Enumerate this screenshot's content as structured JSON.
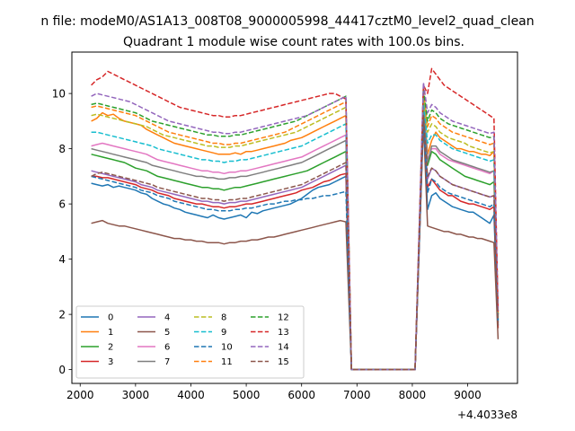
{
  "chart_data": {
    "type": "line",
    "suptitle": "n file: modeM0/AS1A13_008T08_9000005998_44417cztM0_level2_quad_clean",
    "title": "Quadrant 1 module wise count rates with 100.0s bins.",
    "xlabel": "",
    "ylabel": "",
    "x_offset_label": "+4.4033e8",
    "xlim": [
      1850,
      9900
    ],
    "ylim": [
      -0.5,
      11.5
    ],
    "x_ticks": [
      2000,
      3000,
      4000,
      5000,
      6000,
      7000,
      8000,
      9000
    ],
    "x_tick_labels": [
      "2000",
      "3000",
      "4000",
      "5000",
      "6000",
      "7000",
      "8000",
      "9000"
    ],
    "y_ticks": [
      0,
      2,
      4,
      6,
      8,
      10
    ],
    "y_tick_labels": [
      "0",
      "2",
      "4",
      "6",
      "8",
      "10"
    ],
    "grid": false,
    "legend_position": "lower-left",
    "legend_columns": 4,
    "series": [
      {
        "name": "0",
        "color": "#1f77b4",
        "dash": "solid",
        "seg1": [
          6.75,
          6.7,
          6.65,
          6.7,
          6.6,
          6.65,
          6.6,
          6.55,
          6.5,
          6.4,
          6.35,
          6.2,
          6.1,
          6.0,
          5.95,
          5.85,
          5.8,
          5.7,
          5.65,
          5.6,
          5.55,
          5.5,
          5.6,
          5.5,
          5.45,
          5.5,
          5.55,
          5.6,
          5.5,
          5.7,
          5.65,
          5.75,
          5.8,
          5.85,
          5.9,
          5.95,
          6.0,
          6.1,
          6.2,
          6.35,
          6.5,
          6.6,
          6.65,
          6.7,
          6.8,
          6.9,
          7.0
        ],
        "seg2": [
          9.3,
          5.8,
          6.3,
          6.4,
          6.2,
          6.1,
          6.0,
          5.9,
          5.85,
          5.8,
          5.75,
          5.7,
          5.7,
          5.6,
          5.5,
          5.4,
          5.3,
          5.6
        ],
        "seg2_end": 1.6
      },
      {
        "name": "1",
        "color": "#ff7f0e",
        "dash": "solid",
        "seg1": [
          9.0,
          9.1,
          9.3,
          9.2,
          9.25,
          9.1,
          9.0,
          8.95,
          8.9,
          8.85,
          8.7,
          8.6,
          8.5,
          8.4,
          8.3,
          8.2,
          8.15,
          8.1,
          8.05,
          8.0,
          7.95,
          7.9,
          7.85,
          7.8,
          7.8,
          7.8,
          7.85,
          7.8,
          7.9,
          7.9,
          7.95,
          8.0,
          8.05,
          8.1,
          8.15,
          8.2,
          8.3,
          8.35,
          8.4,
          8.5,
          8.6,
          8.7,
          8.8,
          8.9,
          9.0,
          9.1,
          9.2
        ],
        "seg2": [
          9.7,
          7.8,
          8.3,
          8.6,
          8.4,
          8.3,
          8.2,
          8.1,
          8.0,
          8.0,
          7.95,
          7.9,
          7.9,
          7.85,
          7.8,
          7.8,
          7.75,
          7.9
        ],
        "seg2_end": 1.9
      },
      {
        "name": "2",
        "color": "#2ca02c",
        "dash": "solid",
        "seg1": [
          7.8,
          7.75,
          7.7,
          7.65,
          7.6,
          7.55,
          7.5,
          7.4,
          7.3,
          7.25,
          7.2,
          7.1,
          7.0,
          6.95,
          6.9,
          6.85,
          6.8,
          6.75,
          6.7,
          6.65,
          6.6,
          6.6,
          6.55,
          6.55,
          6.5,
          6.55,
          6.6,
          6.6,
          6.65,
          6.7,
          6.75,
          6.8,
          6.85,
          6.9,
          6.95,
          7.0,
          7.05,
          7.1,
          7.15,
          7.2,
          7.3,
          7.4,
          7.5,
          7.6,
          7.7,
          7.8,
          7.9
        ],
        "seg2": [
          9.5,
          7.4,
          7.9,
          7.8,
          7.6,
          7.5,
          7.4,
          7.3,
          7.2,
          7.1,
          7.0,
          6.95,
          6.9,
          6.85,
          6.8,
          6.75,
          6.7,
          6.8
        ],
        "seg2_end": 1.8
      },
      {
        "name": "3",
        "color": "#d62728",
        "dash": "solid",
        "seg1": [
          7.0,
          7.0,
          6.95,
          6.95,
          6.9,
          6.85,
          6.8,
          6.75,
          6.7,
          6.6,
          6.55,
          6.5,
          6.4,
          6.35,
          6.3,
          6.2,
          6.15,
          6.1,
          6.05,
          6.0,
          6.0,
          5.95,
          5.9,
          5.9,
          5.85,
          5.9,
          5.9,
          5.95,
          6.0,
          6.0,
          6.05,
          6.1,
          6.15,
          6.2,
          6.25,
          6.3,
          6.35,
          6.4,
          6.5,
          6.55,
          6.6,
          6.7,
          6.8,
          6.85,
          6.95,
          7.05,
          7.1
        ],
        "seg2": [
          9.2,
          6.6,
          6.9,
          6.7,
          6.5,
          6.4,
          6.3,
          6.3,
          6.2,
          6.1,
          6.05,
          6.0,
          6.0,
          5.95,
          5.9,
          5.85,
          5.8,
          5.9
        ],
        "seg2_end": 1.5
      },
      {
        "name": "4",
        "color": "#9467bd",
        "dash": "solid",
        "seg1": [
          7.2,
          7.15,
          7.1,
          7.05,
          7.0,
          6.95,
          6.9,
          6.85,
          6.8,
          6.7,
          6.65,
          6.6,
          6.5,
          6.45,
          6.4,
          6.35,
          6.3,
          6.25,
          6.2,
          6.15,
          6.1,
          6.1,
          6.05,
          6.05,
          6.0,
          6.05,
          6.05,
          6.1,
          6.1,
          6.15,
          6.2,
          6.25,
          6.3,
          6.35,
          6.4,
          6.45,
          6.5,
          6.55,
          6.6,
          6.7,
          6.8,
          6.9,
          7.0,
          7.1,
          7.2,
          7.3,
          7.4
        ],
        "seg2": [
          9.0,
          6.9,
          7.3,
          7.2,
          7.0,
          6.9,
          6.8,
          6.7,
          6.65,
          6.6,
          6.55,
          6.5,
          6.45,
          6.4,
          6.35,
          6.3,
          6.25,
          6.3
        ],
        "seg2_end": 1.7
      },
      {
        "name": "5",
        "color": "#8c564b",
        "dash": "solid",
        "seg1": [
          5.3,
          5.35,
          5.4,
          5.3,
          5.25,
          5.2,
          5.2,
          5.15,
          5.1,
          5.05,
          5.0,
          4.95,
          4.9,
          4.85,
          4.8,
          4.75,
          4.75,
          4.7,
          4.7,
          4.65,
          4.65,
          4.6,
          4.6,
          4.6,
          4.55,
          4.6,
          4.6,
          4.65,
          4.65,
          4.7,
          4.7,
          4.75,
          4.8,
          4.8,
          4.85,
          4.9,
          4.95,
          5.0,
          5.05,
          5.1,
          5.15,
          5.2,
          5.25,
          5.3,
          5.35,
          5.4,
          5.35
        ],
        "seg2": [
          9.0,
          5.2,
          5.15,
          5.1,
          5.05,
          5.0,
          5.0,
          4.95,
          4.9,
          4.9,
          4.85,
          4.8,
          4.8,
          4.75,
          4.75,
          4.7,
          4.65,
          4.6
        ],
        "seg2_end": 1.1
      },
      {
        "name": "6",
        "color": "#e377c2",
        "dash": "solid",
        "seg1": [
          8.1,
          8.15,
          8.2,
          8.15,
          8.1,
          8.05,
          8.0,
          7.95,
          7.9,
          7.85,
          7.8,
          7.7,
          7.6,
          7.55,
          7.5,
          7.45,
          7.4,
          7.35,
          7.3,
          7.25,
          7.2,
          7.2,
          7.15,
          7.15,
          7.1,
          7.15,
          7.15,
          7.2,
          7.2,
          7.25,
          7.3,
          7.35,
          7.4,
          7.45,
          7.5,
          7.55,
          7.6,
          7.65,
          7.7,
          7.8,
          7.9,
          8.0,
          8.1,
          8.2,
          8.3,
          8.4,
          8.5
        ],
        "seg2": [
          9.4,
          7.6,
          8.0,
          8.0,
          7.8,
          7.7,
          7.6,
          7.55,
          7.5,
          7.45,
          7.4,
          7.35,
          7.3,
          7.25,
          7.2,
          7.15,
          7.1,
          7.2
        ],
        "seg2_end": 1.6
      },
      {
        "name": "7",
        "color": "#7f7f7f",
        "dash": "solid",
        "seg1": [
          8.0,
          7.95,
          7.9,
          7.85,
          7.8,
          7.75,
          7.7,
          7.65,
          7.6,
          7.55,
          7.5,
          7.4,
          7.35,
          7.3,
          7.25,
          7.2,
          7.15,
          7.1,
          7.05,
          7.0,
          7.0,
          6.95,
          6.95,
          6.9,
          6.9,
          6.95,
          6.95,
          7.0,
          7.0,
          7.05,
          7.1,
          7.15,
          7.2,
          7.25,
          7.3,
          7.35,
          7.4,
          7.45,
          7.5,
          7.6,
          7.7,
          7.8,
          7.9,
          8.0,
          8.1,
          8.2,
          8.3
        ],
        "seg2": [
          9.6,
          7.5,
          8.1,
          8.1,
          7.9,
          7.8,
          7.7,
          7.6,
          7.55,
          7.5,
          7.45,
          7.4,
          7.35,
          7.3,
          7.25,
          7.2,
          7.15,
          7.2
        ],
        "seg2_end": 1.7
      },
      {
        "name": "8",
        "color": "#bcbd22",
        "dash": "dashed",
        "seg1": [
          9.2,
          9.25,
          9.2,
          9.15,
          9.1,
          9.05,
          9.0,
          8.95,
          8.9,
          8.85,
          8.8,
          8.7,
          8.6,
          8.5,
          8.45,
          8.4,
          8.35,
          8.3,
          8.25,
          8.2,
          8.15,
          8.1,
          8.1,
          8.05,
          8.05,
          8.05,
          8.1,
          8.1,
          8.15,
          8.2,
          8.25,
          8.3,
          8.35,
          8.4,
          8.45,
          8.5,
          8.55,
          8.6,
          8.7,
          8.8,
          8.9,
          9.0,
          9.1,
          9.2,
          9.3,
          9.4,
          9.5
        ],
        "seg2": [
          9.9,
          8.6,
          8.9,
          8.8,
          8.6,
          8.5,
          8.4,
          8.35,
          8.3,
          8.25,
          8.2,
          8.1,
          8.05,
          8.0,
          7.95,
          7.9,
          7.85,
          7.9
        ],
        "seg2_end": 1.9
      },
      {
        "name": "9",
        "color": "#17becf",
        "dash": "dashed",
        "seg1": [
          8.6,
          8.6,
          8.55,
          8.5,
          8.45,
          8.4,
          8.35,
          8.3,
          8.25,
          8.2,
          8.15,
          8.1,
          8.0,
          7.95,
          7.9,
          7.85,
          7.8,
          7.75,
          7.7,
          7.65,
          7.6,
          7.6,
          7.55,
          7.55,
          7.5,
          7.55,
          7.55,
          7.6,
          7.6,
          7.65,
          7.7,
          7.75,
          7.8,
          7.85,
          7.9,
          7.95,
          8.0,
          8.05,
          8.1,
          8.2,
          8.3,
          8.4,
          8.5,
          8.6,
          8.7,
          8.8,
          8.9
        ],
        "seg2": [
          9.8,
          8.2,
          8.5,
          8.5,
          8.3,
          8.2,
          8.1,
          8.0,
          7.95,
          7.9,
          7.85,
          7.8,
          7.75,
          7.7,
          7.65,
          7.6,
          7.55,
          7.6
        ],
        "seg2_end": 1.8
      },
      {
        "name": "10",
        "color": "#1f77b4",
        "dash": "dashed",
        "seg1": [
          7.0,
          6.95,
          6.9,
          6.85,
          6.8,
          6.75,
          6.7,
          6.65,
          6.6,
          6.5,
          6.45,
          6.4,
          6.3,
          6.25,
          6.2,
          6.1,
          6.05,
          6.0,
          5.95,
          5.9,
          5.85,
          5.8,
          5.8,
          5.75,
          5.75,
          5.75,
          5.8,
          5.8,
          5.85,
          5.85,
          5.9,
          5.95,
          6.0,
          6.0,
          6.05,
          6.1,
          6.1,
          6.15,
          6.15,
          6.2,
          6.2,
          6.25,
          6.3,
          6.3,
          6.35,
          6.4,
          6.45
        ],
        "seg2": [
          9.1,
          6.4,
          6.9,
          6.8,
          6.6,
          6.5,
          6.4,
          6.35,
          6.3,
          6.25,
          6.2,
          6.15,
          6.1,
          6.05,
          6.0,
          5.95,
          5.9,
          6.0
        ],
        "seg2_end": 1.6
      },
      {
        "name": "11",
        "color": "#ff7f0e",
        "dash": "dashed",
        "seg1": [
          9.5,
          9.55,
          9.5,
          9.45,
          9.4,
          9.35,
          9.3,
          9.25,
          9.2,
          9.1,
          9.0,
          8.9,
          8.8,
          8.7,
          8.6,
          8.55,
          8.5,
          8.45,
          8.4,
          8.35,
          8.3,
          8.25,
          8.2,
          8.2,
          8.15,
          8.15,
          8.2,
          8.2,
          8.25,
          8.3,
          8.35,
          8.4,
          8.45,
          8.5,
          8.55,
          8.6,
          8.7,
          8.8,
          8.9,
          9.0,
          9.1,
          9.2,
          9.3,
          9.4,
          9.5,
          9.6,
          9.7
        ],
        "seg2": [
          10.1,
          8.8,
          9.2,
          9.1,
          8.9,
          8.8,
          8.7,
          8.6,
          8.55,
          8.5,
          8.45,
          8.4,
          8.35,
          8.3,
          8.25,
          8.2,
          8.15,
          8.2
        ],
        "seg2_end": 2.0
      },
      {
        "name": "12",
        "color": "#2ca02c",
        "dash": "dashed",
        "seg1": [
          9.6,
          9.65,
          9.6,
          9.55,
          9.5,
          9.45,
          9.4,
          9.35,
          9.3,
          9.2,
          9.1,
          9.0,
          8.95,
          8.9,
          8.85,
          8.8,
          8.75,
          8.7,
          8.65,
          8.6,
          8.55,
          8.5,
          8.5,
          8.45,
          8.45,
          8.45,
          8.5,
          8.5,
          8.55,
          8.6,
          8.65,
          8.7,
          8.75,
          8.8,
          8.85,
          8.9,
          8.95,
          9.0,
          9.1,
          9.2,
          9.3,
          9.4,
          9.5,
          9.6,
          9.7,
          9.8,
          9.9
        ],
        "seg2": [
          10.2,
          9.0,
          9.4,
          9.3,
          9.1,
          9.0,
          8.9,
          8.85,
          8.8,
          8.75,
          8.7,
          8.65,
          8.6,
          8.55,
          8.5,
          8.45,
          8.4,
          8.45
        ],
        "seg2_end": 2.0
      },
      {
        "name": "13",
        "color": "#d62728",
        "dash": "dashed",
        "seg1": [
          10.3,
          10.5,
          10.6,
          10.8,
          10.7,
          10.6,
          10.5,
          10.4,
          10.3,
          10.2,
          10.1,
          10.0,
          9.9,
          9.8,
          9.7,
          9.6,
          9.5,
          9.45,
          9.4,
          9.35,
          9.3,
          9.25,
          9.2,
          9.2,
          9.15,
          9.15,
          9.2,
          9.2,
          9.25,
          9.3,
          9.35,
          9.4,
          9.45,
          9.5,
          9.55,
          9.6,
          9.65,
          9.7,
          9.75,
          9.8,
          9.85,
          9.9,
          9.95,
          10.0,
          10.0,
          9.9,
          9.8
        ],
        "seg2": [
          10.3,
          10.0,
          10.9,
          10.7,
          10.5,
          10.3,
          10.2,
          10.1,
          10.0,
          9.9,
          9.8,
          9.7,
          9.6,
          9.5,
          9.4,
          9.3,
          9.2,
          9.1
        ],
        "seg2_end": 2.1
      },
      {
        "name": "14",
        "color": "#9467bd",
        "dash": "dashed",
        "seg1": [
          9.9,
          10.0,
          9.95,
          9.9,
          9.85,
          9.8,
          9.75,
          9.7,
          9.6,
          9.5,
          9.4,
          9.3,
          9.2,
          9.1,
          9.0,
          8.95,
          8.9,
          8.85,
          8.8,
          8.75,
          8.7,
          8.65,
          8.6,
          8.6,
          8.55,
          8.55,
          8.6,
          8.6,
          8.65,
          8.7,
          8.75,
          8.8,
          8.85,
          8.9,
          8.95,
          9.0,
          9.05,
          9.1,
          9.15,
          9.2,
          9.3,
          9.4,
          9.5,
          9.6,
          9.7,
          9.8,
          9.9
        ],
        "seg2": [
          10.4,
          9.3,
          9.6,
          9.5,
          9.3,
          9.2,
          9.1,
          9.0,
          8.95,
          8.9,
          8.85,
          8.8,
          8.75,
          8.7,
          8.65,
          8.6,
          8.55,
          8.6
        ],
        "seg2_end": 2.0
      },
      {
        "name": "15",
        "color": "#8c564b",
        "dash": "dashed",
        "seg1": [
          7.0,
          7.1,
          7.15,
          7.1,
          7.05,
          7.0,
          6.95,
          6.9,
          6.85,
          6.8,
          6.75,
          6.7,
          6.6,
          6.55,
          6.5,
          6.45,
          6.4,
          6.35,
          6.3,
          6.25,
          6.2,
          6.2,
          6.15,
          6.15,
          6.1,
          6.15,
          6.15,
          6.2,
          6.2,
          6.25,
          6.3,
          6.35,
          6.4,
          6.45,
          6.5,
          6.55,
          6.6,
          6.65,
          6.7,
          6.8,
          6.9,
          7.0,
          7.1,
          7.2,
          7.3,
          7.4,
          7.5
        ],
        "seg2": [
          9.2,
          7.0,
          7.3,
          7.2,
          7.0,
          6.9,
          6.8,
          6.7,
          6.65,
          6.6,
          6.55,
          6.5,
          6.45,
          6.4,
          6.35,
          6.3,
          6.25,
          6.3
        ],
        "seg2_end": 1.5
      }
    ],
    "x_seg1_start": 2200,
    "x_step": 100,
    "x_gap_zero_start": 6900,
    "x_gap_zero_end": 8050,
    "x_seg2_start": 8200,
    "x_seg2_end": 9550
  }
}
